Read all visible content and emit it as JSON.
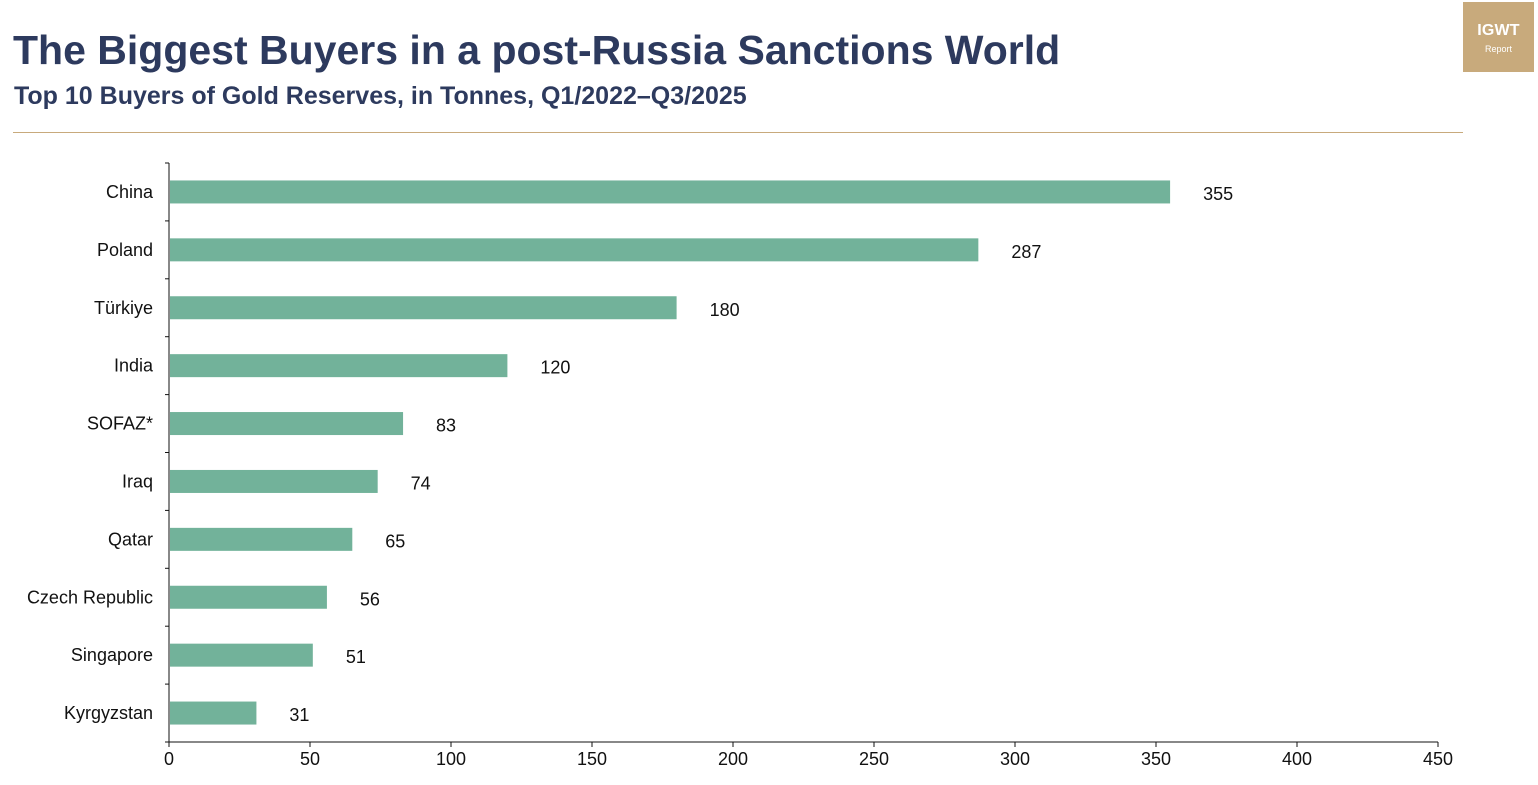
{
  "title": "The Biggest Buyers in a post-Russia Sanctions World",
  "subtitle": "Top 10 Buyers of Gold Reserves, in Tonnes, Q1/2022–Q3/2025",
  "logo": {
    "main": "IGWT",
    "sub": "Report"
  },
  "colors": {
    "title": "#2d3a5e",
    "bar": "#72b29a",
    "rule": "#c8aa7c",
    "logo_bg": "#c8aa7c",
    "axis": "#111111"
  },
  "chart_data": {
    "type": "bar",
    "orientation": "horizontal",
    "categories": [
      "China",
      "Poland",
      "Türkiye",
      "India",
      "SOFAZ*",
      "Iraq",
      "Qatar",
      "Czech Republic",
      "Singapore",
      "Kyrgyzstan"
    ],
    "values": [
      355,
      287,
      180,
      120,
      83,
      74,
      65,
      56,
      51,
      31
    ],
    "x_ticks": [
      "0",
      "50",
      "100",
      "150",
      "200",
      "250",
      "300",
      "350",
      "400",
      "450"
    ],
    "xlim": [
      0,
      450
    ],
    "grid": false,
    "legend": "none"
  }
}
